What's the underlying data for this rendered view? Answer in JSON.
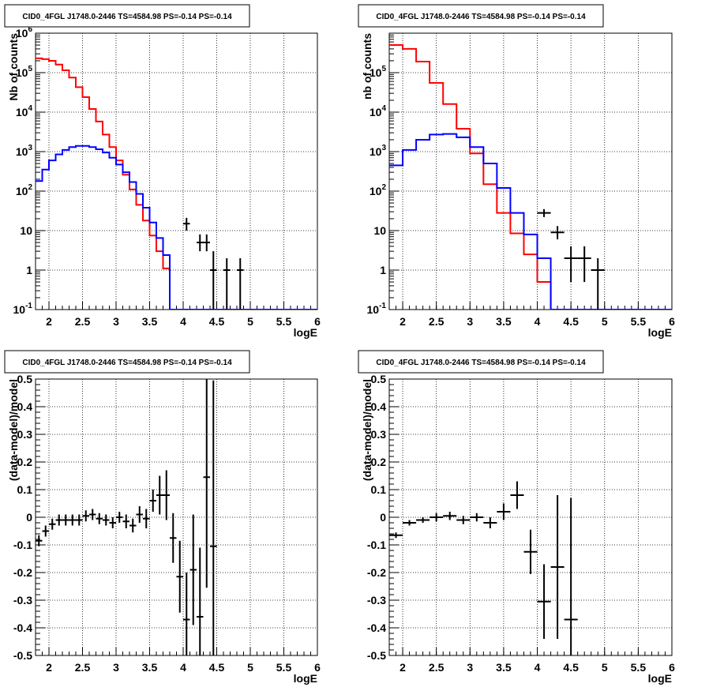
{
  "colors": {
    "model_total": "#ff0000",
    "model_source": "#0000ff",
    "data": "#000000",
    "grid": "#000000"
  },
  "chart_data": [
    {
      "type": "line",
      "title": "CID0_4FGL J1748.0-2446 TS=4584.98 PS=-0.14 PS=-0.14",
      "xlabel": "logE",
      "ylabel": "Nb of counts",
      "xlim": [
        1.8,
        6
      ],
      "ylim": [
        0.1,
        1000000
      ],
      "ylog": true,
      "grid": true,
      "xticks": [
        "2",
        "2.5",
        "3",
        "3.5",
        "4",
        "4.5",
        "5",
        "5.5",
        "6"
      ],
      "yticks": [
        "10^-1",
        "1",
        "10",
        "10^2",
        "10^3",
        "10^4",
        "10^5",
        "10^6"
      ],
      "bin_edges_start": 1.8,
      "bin_width": 0.1,
      "series": [
        {
          "kind": "step",
          "color": "red",
          "values": [
            230000,
            220000,
            200000,
            160000,
            115000,
            75000,
            43000,
            24000,
            12000,
            5800,
            2700,
            1300,
            600,
            260,
            110,
            45,
            18,
            7.5,
            3,
            1.1,
            0.1,
            0.1,
            0.1,
            0.1,
            0.1,
            0.1,
            0.1,
            0.1,
            0.1,
            0.1,
            0.1,
            0.1,
            0.1,
            0.1,
            0.1,
            0.1,
            0.1,
            0.1,
            0.1,
            0.1,
            0.1,
            0.1
          ]
        },
        {
          "kind": "step",
          "color": "blue",
          "values": [
            180,
            350,
            600,
            850,
            1100,
            1300,
            1400,
            1400,
            1300,
            1150,
            950,
            700,
            470,
            300,
            170,
            85,
            38,
            16,
            6.5,
            2.4,
            0.1,
            0.1,
            0.1,
            0.1,
            0.1,
            0.1,
            0.1,
            0.1,
            0.1,
            0.1,
            0.1,
            0.1,
            0.1,
            0.1,
            0.1,
            0.1,
            0.1,
            0.1,
            0.1,
            0.1,
            0.1,
            0.1
          ]
        },
        {
          "kind": "errorbar",
          "color": "black",
          "points": [
            {
              "x": 4.05,
              "y": 15,
              "lo": 10,
              "hi": 21,
              "xerr": 0.05
            },
            {
              "x": 4.25,
              "y": 5,
              "lo": 3,
              "hi": 8,
              "xerr": 0.05
            },
            {
              "x": 4.35,
              "y": 5,
              "lo": 3,
              "hi": 8,
              "xerr": 0.05
            },
            {
              "x": 4.45,
              "y": 1,
              "lo": 0.1,
              "hi": 3,
              "xerr": 0.05
            },
            {
              "x": 4.65,
              "y": 1,
              "lo": 0.1,
              "hi": 2,
              "xerr": 0.05
            },
            {
              "x": 4.85,
              "y": 1,
              "lo": 0.1,
              "hi": 2,
              "xerr": 0.05
            }
          ]
        }
      ]
    },
    {
      "type": "line",
      "title": "CID0_4FGL J1748.0-2446 TS=4584.98 PS=-0.14 PS=-0.14",
      "xlabel": "logE",
      "ylabel": "nb of counts",
      "xlim": [
        1.8,
        6
      ],
      "ylim": [
        0.1,
        1000000
      ],
      "ylog": true,
      "grid": true,
      "xticks": [
        "2",
        "2.5",
        "3",
        "3.5",
        "4",
        "4.5",
        "5",
        "5.5",
        "6"
      ],
      "yticks": [
        "10^-1",
        "1",
        "10",
        "10^2",
        "10^3",
        "10^4",
        "10^5"
      ],
      "bin_edges_start": 1.8,
      "bin_width": 0.2,
      "series": [
        {
          "kind": "step",
          "color": "red",
          "values": [
            500000,
            400000,
            190000,
            55000,
            16000,
            3800,
            900,
            150,
            28,
            8.5,
            2.5,
            0.5,
            0.1,
            0.1,
            0.1,
            0.1,
            0.1,
            0.1,
            0.1,
            0.1,
            0.1
          ]
        },
        {
          "kind": "step",
          "color": "blue",
          "values": [
            450,
            1100,
            2000,
            2700,
            2800,
            2300,
            1300,
            500,
            120,
            28,
            8,
            2,
            0.1,
            0.1,
            0.1,
            0.1,
            0.1,
            0.1,
            0.1,
            0.1,
            0.1
          ]
        },
        {
          "kind": "errorbar",
          "color": "black",
          "points": [
            {
              "x": 4.1,
              "y": 28,
              "lo": 22,
              "hi": 35,
              "xerr": 0.1
            },
            {
              "x": 4.3,
              "y": 9,
              "lo": 6,
              "hi": 13,
              "xerr": 0.1
            },
            {
              "x": 4.5,
              "y": 2,
              "lo": 0.5,
              "hi": 4,
              "xerr": 0.1
            },
            {
              "x": 4.7,
              "y": 2,
              "lo": 0.5,
              "hi": 4,
              "xerr": 0.1
            },
            {
              "x": 4.9,
              "y": 1,
              "lo": 0.1,
              "hi": 2,
              "xerr": 0.1
            }
          ]
        }
      ]
    },
    {
      "type": "scatter",
      "title": "CID0_4FGL J1748.0-2446 TS=4584.98 PS=-0.14 PS=-0.14",
      "xlabel": "logE",
      "ylabel": "(data-model)/model",
      "xlim": [
        1.8,
        6
      ],
      "ylim": [
        -0.5,
        0.5
      ],
      "grid": true,
      "xticks": [
        "2",
        "2.5",
        "3",
        "3.5",
        "4",
        "4.5",
        "5",
        "5.5",
        "6"
      ],
      "yticks": [
        "-0.5",
        "-0.4",
        "-0.3",
        "-0.2",
        "-0.1",
        "0",
        "0.1",
        "0.2",
        "0.3",
        "0.4",
        "0.5"
      ],
      "series": [
        {
          "kind": "errorbar",
          "color": "black",
          "xerr": 0.05,
          "points": [
            {
              "x": 1.85,
              "y": -0.085,
              "err": 0.02
            },
            {
              "x": 1.95,
              "y": -0.05,
              "err": 0.02
            },
            {
              "x": 2.05,
              "y": -0.025,
              "err": 0.02
            },
            {
              "x": 2.15,
              "y": -0.01,
              "err": 0.02
            },
            {
              "x": 2.25,
              "y": -0.01,
              "err": 0.02
            },
            {
              "x": 2.35,
              "y": -0.01,
              "err": 0.02
            },
            {
              "x": 2.45,
              "y": -0.01,
              "err": 0.02
            },
            {
              "x": 2.55,
              "y": 0.005,
              "err": 0.02
            },
            {
              "x": 2.65,
              "y": 0.01,
              "err": 0.02
            },
            {
              "x": 2.75,
              "y": -0.005,
              "err": 0.02
            },
            {
              "x": 2.85,
              "y": -0.01,
              "err": 0.02
            },
            {
              "x": 2.95,
              "y": -0.02,
              "err": 0.02
            },
            {
              "x": 3.05,
              "y": 0.0,
              "err": 0.02
            },
            {
              "x": 3.15,
              "y": -0.015,
              "err": 0.025
            },
            {
              "x": 3.25,
              "y": -0.03,
              "err": 0.025
            },
            {
              "x": 3.35,
              "y": 0.01,
              "err": 0.03
            },
            {
              "x": 3.45,
              "y": -0.005,
              "err": 0.035
            },
            {
              "x": 3.55,
              "y": 0.06,
              "err": 0.04
            },
            {
              "x": 3.65,
              "y": 0.08,
              "err": 0.07
            },
            {
              "x": 3.75,
              "y": 0.08,
              "err": 0.09
            },
            {
              "x": 3.85,
              "y": -0.075,
              "err": 0.09
            },
            {
              "x": 3.95,
              "y": -0.215,
              "err": 0.13
            },
            {
              "x": 4.05,
              "y": -0.37,
              "err": 0.17
            },
            {
              "x": 4.15,
              "y": -0.19,
              "err": 0.2
            },
            {
              "x": 4.25,
              "y": -0.36,
              "err": 0.25
            },
            {
              "x": 4.35,
              "y": 0.145,
              "err": 0.4
            },
            {
              "x": 4.45,
              "y": -0.105,
              "err": 0.6
            }
          ]
        }
      ]
    },
    {
      "type": "scatter",
      "title": "CID0_4FGL J1748.0-2446 TS=4584.98 PS=-0.14 PS=-0.14",
      "xlabel": "logE",
      "ylabel": "(data-model)/model",
      "xlim": [
        1.8,
        6
      ],
      "ylim": [
        -0.5,
        0.5
      ],
      "grid": true,
      "xticks": [
        "2",
        "2.5",
        "3",
        "3.5",
        "4",
        "4.5",
        "5",
        "5.5",
        "6"
      ],
      "yticks": [
        "-0.5",
        "-0.4",
        "-0.3",
        "-0.2",
        "-0.1",
        "0",
        "0.1",
        "0.2",
        "0.3",
        "0.4",
        "0.5"
      ],
      "series": [
        {
          "kind": "errorbar",
          "color": "black",
          "xerr": 0.1,
          "points": [
            {
              "x": 1.9,
              "y": -0.065,
              "err": 0.01
            },
            {
              "x": 2.1,
              "y": -0.02,
              "err": 0.01
            },
            {
              "x": 2.3,
              "y": -0.01,
              "err": 0.01
            },
            {
              "x": 2.5,
              "y": 0.0,
              "err": 0.015
            },
            {
              "x": 2.7,
              "y": 0.005,
              "err": 0.015
            },
            {
              "x": 2.9,
              "y": -0.01,
              "err": 0.015
            },
            {
              "x": 3.1,
              "y": 0.0,
              "err": 0.015
            },
            {
              "x": 3.3,
              "y": -0.02,
              "err": 0.02
            },
            {
              "x": 3.5,
              "y": 0.02,
              "err": 0.03
            },
            {
              "x": 3.7,
              "y": 0.08,
              "err": 0.05
            },
            {
              "x": 3.9,
              "y": -0.125,
              "err": 0.08
            },
            {
              "x": 4.1,
              "y": -0.305,
              "err": 0.135
            },
            {
              "x": 4.3,
              "y": -0.18,
              "err": 0.26
            },
            {
              "x": 4.5,
              "y": -0.37,
              "err": 0.44
            }
          ]
        }
      ]
    }
  ]
}
